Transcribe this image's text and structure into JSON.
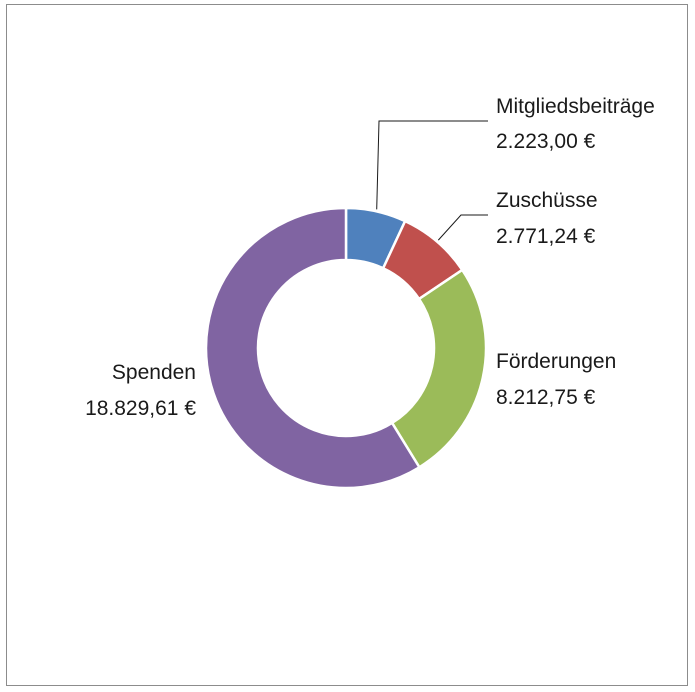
{
  "chart_data": {
    "type": "pie",
    "donut": true,
    "title": "",
    "slices": [
      {
        "label": "Mitgliedsbeiträge",
        "value": 2223.0,
        "value_label": "2.223,00 €",
        "color": "#4f81bd"
      },
      {
        "label": "Zuschüsse",
        "value": 2771.24,
        "value_label": "2.771,24 €",
        "color": "#c0504d"
      },
      {
        "label": "Förderungen",
        "value": 8212.75,
        "value_label": "8.212,75 €",
        "color": "#9bbb59"
      },
      {
        "label": "Spenden",
        "value": 18829.61,
        "value_label": "18.829,61 €",
        "color": "#8064a2"
      }
    ],
    "legend": "none",
    "data_labels": "outside"
  }
}
